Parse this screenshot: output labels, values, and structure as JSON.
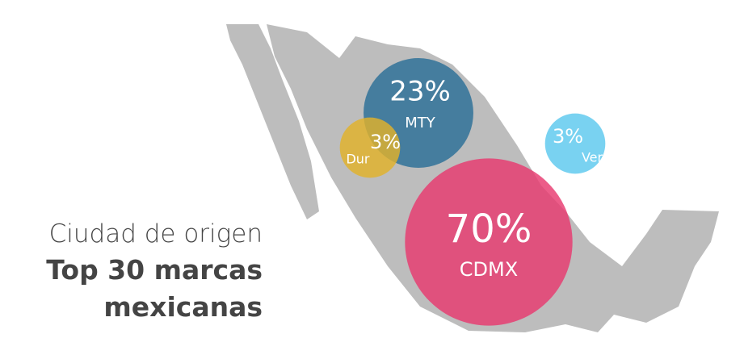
{
  "chart_data": {
    "type": "bubble",
    "title": "Ciudad de origen",
    "subtitle": "Top 30 marcas mexicanas",
    "categories": [
      "MTY",
      "Dur",
      "CDMX",
      "Ver"
    ],
    "values": [
      23,
      3,
      70,
      3
    ],
    "value_labels": [
      "23%",
      "3%",
      "70%",
      "3%"
    ],
    "colors": [
      "#2b6f97",
      "#e2b22a",
      "#e8396f",
      "#5bc8ee"
    ]
  }
}
